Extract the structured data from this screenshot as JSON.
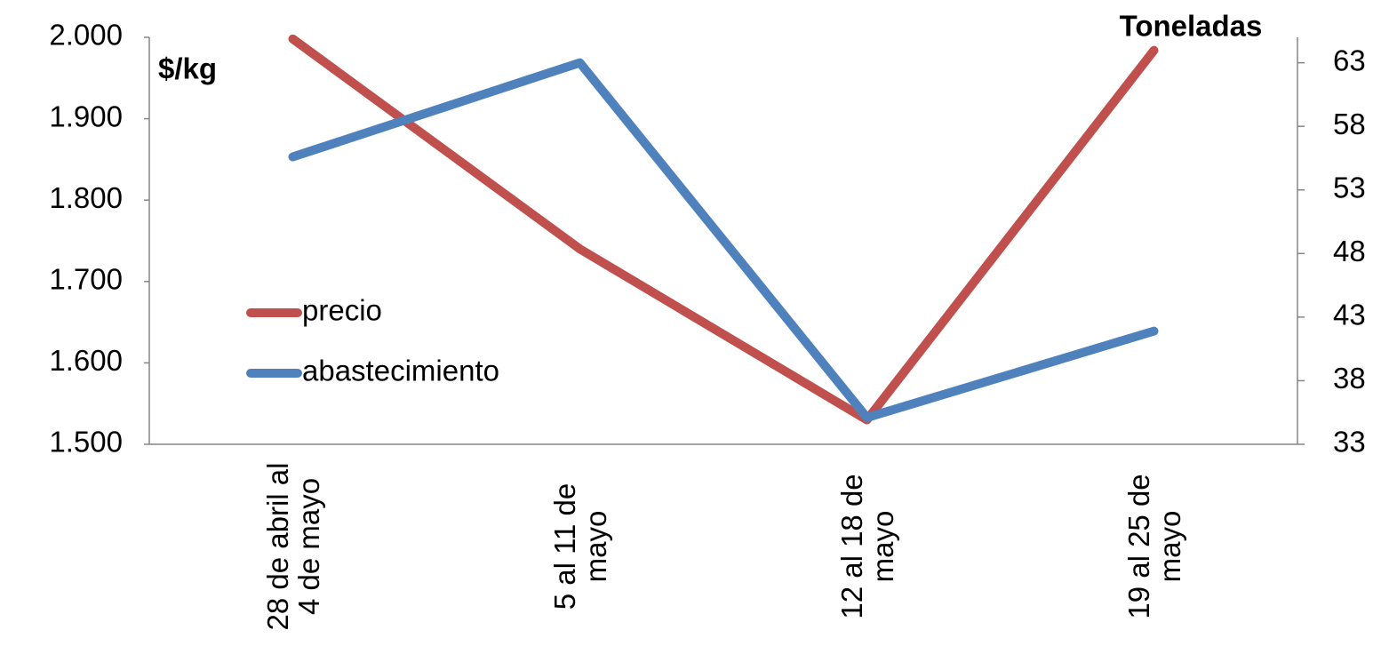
{
  "chart_data": {
    "type": "line",
    "categories": [
      "28 de abril al 4 de mayo",
      "5 al 11 de mayo",
      "12 al 18 de mayo",
      "19 al 25 de mayo"
    ],
    "series": [
      {
        "name": "precio",
        "color": "#c0504d",
        "values": [
          1998,
          1740,
          1530,
          1984
        ]
      },
      {
        "name": "abastecimiento",
        "color": "#4f81bd",
        "axis": "y2",
        "values": [
          55.6,
          63,
          35.1,
          41.9
        ]
      }
    ],
    "y_label": "$/kg",
    "y2_label": "Toneladas",
    "ylim": [
      1500,
      2000
    ],
    "yticks": [
      {
        "value": 1500,
        "label": "1.500"
      },
      {
        "value": 1600,
        "label": "1.600"
      },
      {
        "value": 1700,
        "label": "1.700"
      },
      {
        "value": 1800,
        "label": "1.800"
      },
      {
        "value": 1900,
        "label": "1.900"
      },
      {
        "value": 2000,
        "label": "2.000"
      }
    ],
    "y2lim": [
      33,
      65
    ],
    "y2ticks": [
      33,
      38,
      43,
      48,
      53,
      58,
      63
    ],
    "grid": false
  }
}
